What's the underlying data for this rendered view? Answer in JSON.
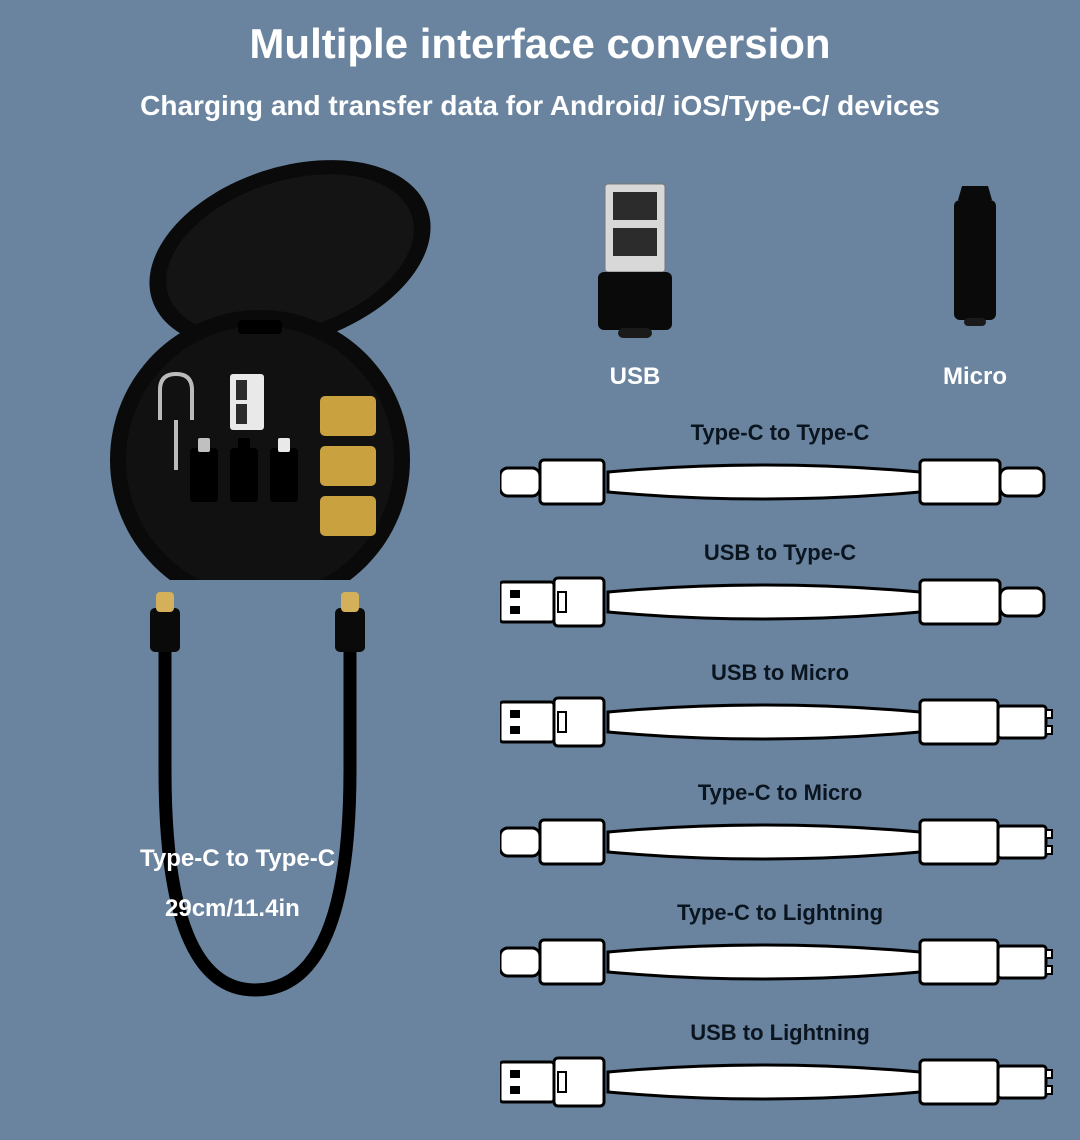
{
  "title": "Multiple interface conversion",
  "subtitle": "Charging and transfer data for Android/ iOS/Type-C/ devices",
  "main_cable": {
    "label1": "Type-C to Type-C",
    "label2": "29cm/11.4in"
  },
  "adapters": {
    "usb_label": "USB",
    "micro_label": "Micro"
  },
  "cables": [
    {
      "label": "Type-C to Type-C",
      "left": "typec",
      "right": "typec"
    },
    {
      "label": "USB to Type-C",
      "left": "usb",
      "right": "typec"
    },
    {
      "label": "USB to Micro",
      "left": "usb",
      "right": "micro"
    },
    {
      "label": "Type-C to Micro",
      "left": "typec",
      "right": "micro"
    },
    {
      "label": "Type-C to Lightning",
      "left": "typec",
      "right": "lightning"
    },
    {
      "label": "USB to Lightning",
      "left": "usb",
      "right": "lightning"
    }
  ],
  "colors": {
    "bg": "#6a84a0",
    "white": "#ffffff",
    "black": "#0a0a0a",
    "dark_label": "#0b1520",
    "outline": "#000000",
    "gold": "#d4b05a",
    "sim": "#c9a23f",
    "silver": "#d8d8d8"
  }
}
